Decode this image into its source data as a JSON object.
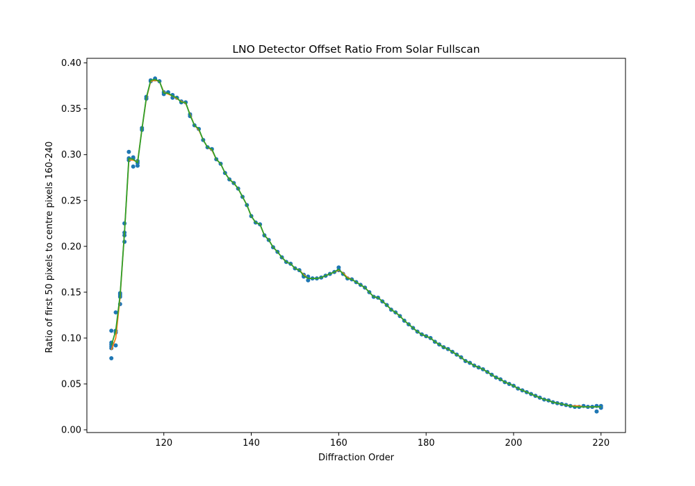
{
  "chart_data": {
    "type": "scatter",
    "title": "LNO Detector Offset Ratio From Solar Fullscan",
    "xlabel": "Diffraction Order",
    "ylabel": "Ratio of first 50 pixels to centre pixels 160-240",
    "xlim": [
      102.4,
      225.6
    ],
    "ylim": [
      -0.003,
      0.405
    ],
    "xticks": [
      "120",
      "140",
      "160",
      "180",
      "200",
      "220"
    ],
    "yticks": [
      "0.00",
      "0.05",
      "0.10",
      "0.15",
      "0.20",
      "0.25",
      "0.30",
      "0.35",
      "0.40"
    ],
    "grid": false,
    "colors": {
      "points": "#1f77b4",
      "fit_orange": "#ff7f0e",
      "fit_green": "#2ca02c"
    },
    "series": [
      {
        "kind": "points",
        "x": [
          108,
          108,
          108,
          108,
          108,
          108,
          109,
          109,
          109,
          109,
          110,
          110,
          110,
          110,
          111,
          111,
          111,
          111,
          112,
          112,
          112,
          113,
          113,
          113,
          114,
          114,
          114,
          115,
          115,
          116,
          116,
          117,
          117,
          118,
          118,
          119,
          120,
          120,
          121,
          122,
          122,
          123,
          124,
          124,
          125,
          126,
          126,
          127,
          128,
          129,
          130,
          131,
          132,
          133,
          134,
          135,
          136,
          137,
          138,
          139,
          140,
          141,
          142,
          143,
          144,
          145,
          146,
          147,
          148,
          149,
          150,
          151,
          152,
          152,
          153,
          153,
          154,
          155,
          156,
          157,
          158,
          159,
          160,
          160,
          161,
          162,
          163,
          164,
          165,
          166,
          167,
          168,
          169,
          170,
          171,
          172,
          173,
          174,
          175,
          176,
          177,
          178,
          179,
          180,
          181,
          182,
          183,
          184,
          185,
          186,
          187,
          188,
          189,
          190,
          191,
          192,
          193,
          194,
          195,
          196,
          197,
          198,
          199,
          200,
          201,
          202,
          203,
          204,
          205,
          206,
          207,
          208,
          209,
          210,
          211,
          212,
          213,
          214,
          215,
          216,
          217,
          218,
          219,
          219,
          220,
          220
        ],
        "y": [
          0.093,
          0.091,
          0.089,
          0.108,
          0.078,
          0.095,
          0.128,
          0.108,
          0.106,
          0.092,
          0.137,
          0.147,
          0.145,
          0.149,
          0.225,
          0.215,
          0.212,
          0.205,
          0.303,
          0.296,
          0.294,
          0.297,
          0.296,
          0.287,
          0.291,
          0.288,
          0.293,
          0.329,
          0.327,
          0.361,
          0.363,
          0.38,
          0.381,
          0.383,
          0.382,
          0.38,
          0.368,
          0.366,
          0.368,
          0.365,
          0.362,
          0.362,
          0.357,
          0.358,
          0.357,
          0.344,
          0.342,
          0.332,
          0.328,
          0.316,
          0.308,
          0.306,
          0.295,
          0.29,
          0.28,
          0.273,
          0.269,
          0.263,
          0.254,
          0.245,
          0.233,
          0.226,
          0.224,
          0.212,
          0.207,
          0.199,
          0.194,
          0.188,
          0.183,
          0.181,
          0.176,
          0.174,
          0.169,
          0.167,
          0.163,
          0.167,
          0.165,
          0.165,
          0.166,
          0.168,
          0.17,
          0.172,
          0.174,
          0.177,
          0.17,
          0.165,
          0.164,
          0.161,
          0.158,
          0.155,
          0.15,
          0.145,
          0.144,
          0.14,
          0.136,
          0.131,
          0.128,
          0.124,
          0.119,
          0.115,
          0.111,
          0.107,
          0.104,
          0.102,
          0.1,
          0.096,
          0.093,
          0.09,
          0.088,
          0.085,
          0.082,
          0.079,
          0.075,
          0.073,
          0.07,
          0.068,
          0.066,
          0.063,
          0.06,
          0.057,
          0.055,
          0.052,
          0.05,
          0.048,
          0.045,
          0.043,
          0.041,
          0.039,
          0.037,
          0.035,
          0.033,
          0.032,
          0.03,
          0.029,
          0.028,
          0.027,
          0.026,
          0.025,
          0.025,
          0.026,
          0.025,
          0.025,
          0.026,
          0.02,
          0.024,
          0.026
        ]
      },
      {
        "kind": "line",
        "color": "orange",
        "x": [
          108,
          109,
          110,
          111,
          112,
          113,
          114,
          115,
          116,
          117,
          118,
          119,
          120,
          121,
          122,
          123,
          124,
          125,
          126,
          127,
          128,
          129,
          130,
          131,
          132,
          133,
          134,
          135,
          136,
          137,
          138,
          139,
          140,
          141,
          142,
          143,
          144,
          145,
          146,
          147,
          148,
          149,
          150,
          151,
          152,
          153,
          154,
          155,
          156,
          157,
          158,
          159,
          160,
          161,
          162,
          163,
          164,
          165,
          166,
          167,
          168,
          169,
          170,
          171,
          172,
          173,
          174,
          175,
          176,
          177,
          178,
          179,
          180,
          181,
          182,
          183,
          184,
          185,
          186,
          187,
          188,
          189,
          190,
          191,
          192,
          193,
          194,
          195,
          196,
          197,
          198,
          199,
          200,
          201,
          202,
          203,
          204,
          205,
          206,
          207,
          208,
          209,
          210,
          211,
          212,
          213,
          214,
          215,
          216,
          217,
          218,
          219,
          220
        ],
        "y": [
          0.087,
          0.1,
          0.145,
          0.215,
          0.294,
          0.294,
          0.292,
          0.328,
          0.361,
          0.38,
          0.381,
          0.38,
          0.368,
          0.366,
          0.364,
          0.361,
          0.358,
          0.356,
          0.344,
          0.332,
          0.327,
          0.316,
          0.308,
          0.305,
          0.295,
          0.29,
          0.28,
          0.273,
          0.269,
          0.263,
          0.254,
          0.245,
          0.233,
          0.226,
          0.224,
          0.212,
          0.207,
          0.199,
          0.194,
          0.188,
          0.183,
          0.181,
          0.176,
          0.174,
          0.169,
          0.165,
          0.165,
          0.165,
          0.166,
          0.168,
          0.17,
          0.172,
          0.174,
          0.171,
          0.166,
          0.164,
          0.161,
          0.158,
          0.155,
          0.15,
          0.145,
          0.144,
          0.14,
          0.136,
          0.131,
          0.128,
          0.124,
          0.119,
          0.115,
          0.111,
          0.107,
          0.104,
          0.102,
          0.1,
          0.096,
          0.093,
          0.09,
          0.088,
          0.085,
          0.082,
          0.079,
          0.075,
          0.073,
          0.07,
          0.068,
          0.066,
          0.063,
          0.06,
          0.057,
          0.055,
          0.052,
          0.05,
          0.048,
          0.045,
          0.043,
          0.041,
          0.039,
          0.037,
          0.035,
          0.033,
          0.032,
          0.03,
          0.029,
          0.028,
          0.027,
          0.026,
          0.026,
          0.026,
          0.025,
          0.025,
          0.025,
          0.025,
          0.025
        ]
      },
      {
        "kind": "line",
        "color": "green",
        "x": [
          108,
          109,
          110,
          111,
          112,
          113,
          114,
          115,
          116,
          117,
          118,
          119,
          120,
          121,
          122,
          123,
          124,
          125,
          126,
          127,
          128,
          129,
          130,
          131,
          132,
          133,
          134,
          135,
          136,
          137,
          138,
          139,
          140,
          141,
          142,
          143,
          144,
          145,
          146,
          147,
          148,
          149,
          150,
          151,
          152,
          153,
          154,
          155,
          156,
          157,
          158,
          159,
          160,
          161,
          162,
          163,
          164,
          165,
          166,
          167,
          168,
          169,
          170,
          171,
          172,
          173,
          174,
          175,
          176,
          177,
          178,
          179,
          180,
          181,
          182,
          183,
          184,
          185,
          186,
          187,
          188,
          189,
          190,
          191,
          192,
          193,
          194,
          195,
          196,
          197,
          198,
          199,
          200,
          201,
          202,
          203,
          204,
          205,
          206,
          207,
          208,
          209,
          210,
          211,
          212,
          213,
          214,
          215,
          216,
          217,
          218,
          219,
          220
        ],
        "y": [
          0.092,
          0.108,
          0.147,
          0.215,
          0.296,
          0.295,
          0.291,
          0.328,
          0.362,
          0.381,
          0.382,
          0.38,
          0.367,
          0.367,
          0.364,
          0.362,
          0.357,
          0.357,
          0.343,
          0.332,
          0.328,
          0.316,
          0.308,
          0.306,
          0.295,
          0.29,
          0.28,
          0.273,
          0.269,
          0.263,
          0.254,
          0.245,
          0.233,
          0.226,
          0.224,
          0.212,
          0.207,
          0.199,
          0.194,
          0.188,
          0.183,
          0.181,
          0.176,
          0.174,
          0.168,
          0.165,
          0.165,
          0.165,
          0.166,
          0.168,
          0.17,
          0.172,
          0.175,
          0.17,
          0.165,
          0.164,
          0.161,
          0.158,
          0.155,
          0.15,
          0.145,
          0.144,
          0.14,
          0.136,
          0.131,
          0.128,
          0.124,
          0.119,
          0.115,
          0.111,
          0.107,
          0.104,
          0.102,
          0.1,
          0.096,
          0.093,
          0.09,
          0.088,
          0.085,
          0.082,
          0.079,
          0.075,
          0.073,
          0.07,
          0.068,
          0.066,
          0.063,
          0.06,
          0.057,
          0.055,
          0.052,
          0.05,
          0.048,
          0.045,
          0.043,
          0.041,
          0.039,
          0.037,
          0.035,
          0.033,
          0.032,
          0.03,
          0.029,
          0.028,
          0.027,
          0.026,
          0.025,
          0.025,
          0.025,
          0.025,
          0.025,
          0.025,
          0.025
        ]
      }
    ]
  }
}
